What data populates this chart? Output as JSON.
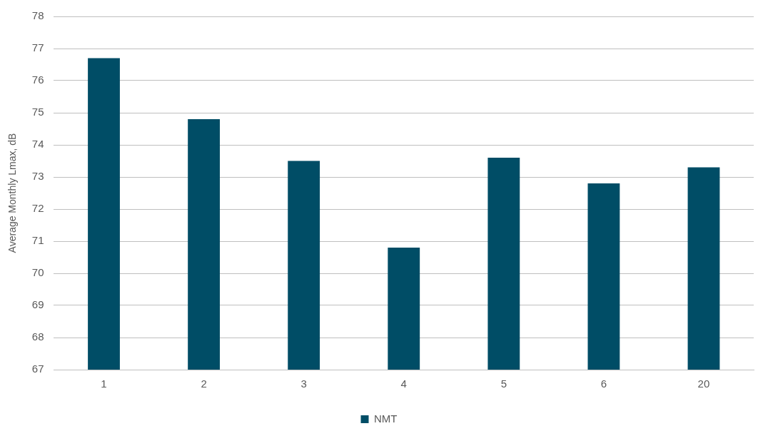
{
  "chart_data": {
    "type": "bar",
    "ylabel": "Average Monthly Lmax, dB",
    "categories": [
      "1",
      "2",
      "3",
      "4",
      "5",
      "6",
      "20"
    ],
    "series": [
      {
        "name": "NMT",
        "color": "#004d66",
        "values": [
          76.7,
          74.8,
          73.5,
          70.8,
          73.6,
          72.8,
          73.3
        ]
      }
    ],
    "ylim": [
      67,
      78
    ],
    "yticks": [
      67,
      68,
      69,
      70,
      71,
      72,
      73,
      74,
      75,
      76,
      77,
      78
    ],
    "grid": "y",
    "legend": "bottom"
  }
}
